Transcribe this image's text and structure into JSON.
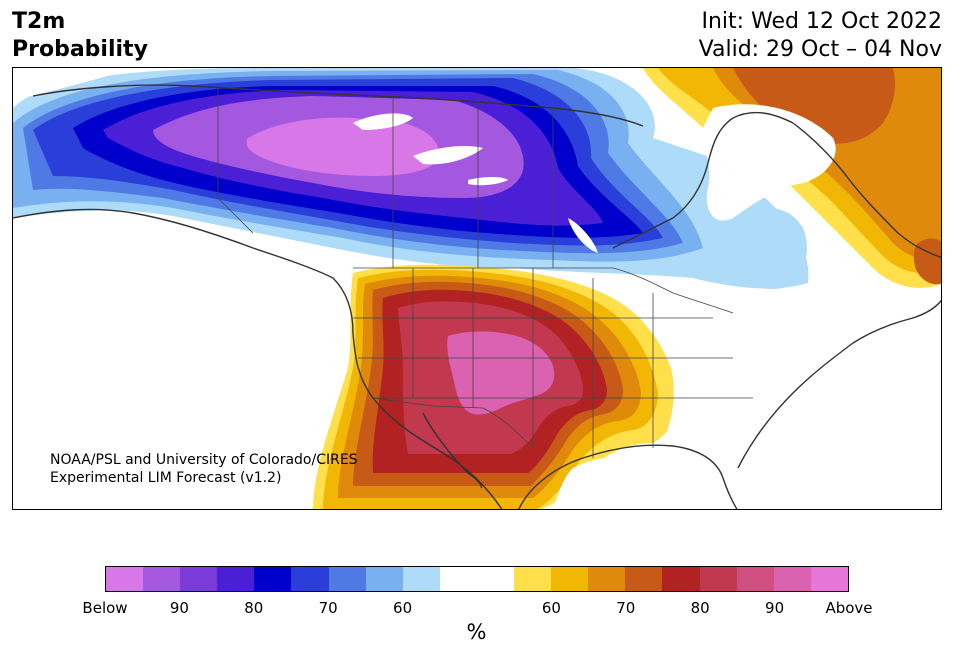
{
  "title": {
    "line1": "T2m",
    "line2": "Probability"
  },
  "init": {
    "line1": "Init: Wed 12 Oct 2022",
    "line2": "Valid: 29 Oct – 04 Nov"
  },
  "credit": {
    "line1": "NOAA/PSL and University of Colorado/CIRES",
    "line2": "Experimental LIM Forecast (v1.2)"
  },
  "legend": {
    "unit": "%",
    "colors": [
      "#d877e8",
      "#a458e0",
      "#7a3bd8",
      "#4a1fd6",
      "#0000cc",
      "#2a3fd9",
      "#4f7ae6",
      "#78b0f0",
      "#aedbf8",
      "#ffffff",
      "#ffffff",
      "#ffe04a",
      "#f2b705",
      "#e08a0b",
      "#c85a17",
      "#b22222",
      "#c2384e",
      "#d04e80",
      "#db62b0",
      "#e876d8"
    ],
    "ticks": [
      "Below",
      "90",
      "80",
      "70",
      "60",
      "60",
      "70",
      "80",
      "90",
      "Above"
    ]
  },
  "map": {
    "colors": {
      "below_high": "#d877e8",
      "below_90": "#a458e0",
      "below_80": "#4a1fd6",
      "below_70": "#0000cc",
      "below_60": "#2a3fd9",
      "below_50": "#4f7ae6",
      "below_40": "#78b0f0",
      "below_low": "#aedbf8",
      "above_low": "#ffe04a",
      "above_60": "#f2b705",
      "above_70": "#e08a0b",
      "above_80": "#c85a17",
      "above_90": "#b22222",
      "above_95": "#c2384e",
      "above_high": "#db62b0",
      "coast": "#333333"
    }
  }
}
